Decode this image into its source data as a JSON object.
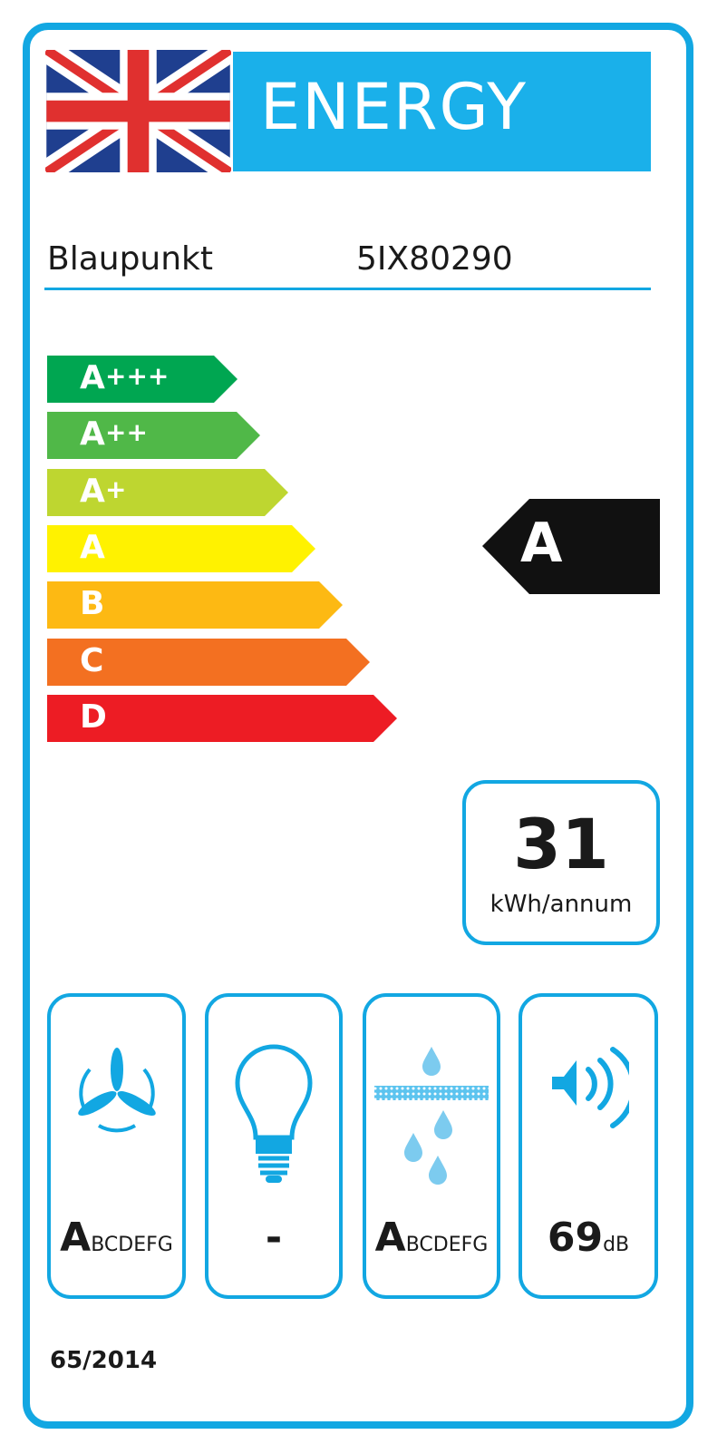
{
  "header": {
    "title": "ENERGY",
    "flag": "uk-flag-icon"
  },
  "supplier": {
    "brand": "Blaupunkt",
    "model": "5IX80290"
  },
  "scale": [
    {
      "label": "A",
      "sup": "+++",
      "color": "#00a651"
    },
    {
      "label": "A",
      "sup": "++",
      "color": "#50b848"
    },
    {
      "label": "A",
      "sup": "+",
      "color": "#bed630"
    },
    {
      "label": "A",
      "sup": "",
      "color": "#fff200"
    },
    {
      "label": "B",
      "sup": "",
      "color": "#fdb913"
    },
    {
      "label": "C",
      "sup": "",
      "color": "#f37021"
    },
    {
      "label": "D",
      "sup": "",
      "color": "#ed1c24"
    }
  ],
  "rating": {
    "class": "A",
    "color": "#111111"
  },
  "consumption": {
    "value": "31",
    "unit": "kWh/annum"
  },
  "icons": [
    {
      "icon": "fan-icon",
      "big": "A",
      "small": "BCDEFG"
    },
    {
      "icon": "light-bulb-icon",
      "big": "-",
      "small": ""
    },
    {
      "icon": "grease-filter-icon",
      "big": "A",
      "small": "BCDEFG"
    },
    {
      "icon": "speaker-icon",
      "big": "69",
      "small": "dB"
    }
  ],
  "footer": {
    "regulation": "65/2014"
  },
  "colors": {
    "accent": "#12a7e2"
  }
}
